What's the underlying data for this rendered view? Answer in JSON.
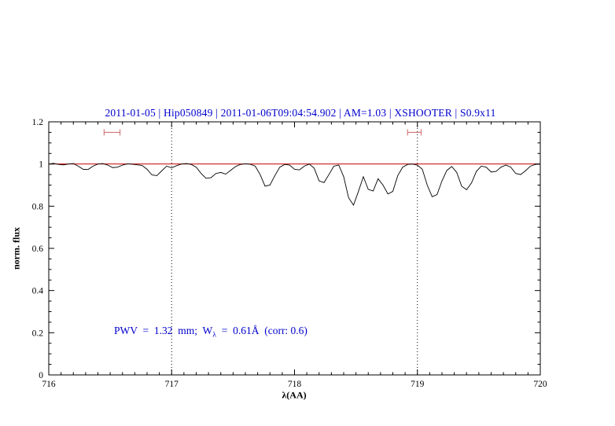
{
  "header": {
    "title": "2011-01-05 | Hip050849 | 2011-01-06T09:04:54.902 | AM=1.03 | XSHOOTER | S0.9x11"
  },
  "annotation": {
    "prefix": "PWV  =  1.32  mm;  W",
    "sub": "λ",
    "suffix": "  =  0.61Å  (corr: 0.6)"
  },
  "colors": {
    "title": "#0000cc",
    "annotation": "#0000cc",
    "continuum": "#cc0000",
    "marker": "#cc6666",
    "spectrum": "#000000",
    "frame": "#000000",
    "vline": "#000000"
  },
  "chart_data": {
    "type": "line",
    "title": "2011-01-05 | Hip050849 | 2011-01-06T09:04:54.902 | AM=1.03 | XSHOOTER | S0.9x11",
    "xlabel": "λ(AA)",
    "ylabel": "norm. flux",
    "xlim": [
      716,
      720
    ],
    "ylim": [
      0,
      1.2
    ],
    "x_ticks": [
      716,
      717,
      718,
      719,
      720
    ],
    "x_tick_labels": [
      "716",
      "717",
      "718",
      "719",
      "720"
    ],
    "y_ticks": [
      0,
      0.2,
      0.4,
      0.6,
      0.8,
      1,
      1.2
    ],
    "y_tick_labels": [
      "0",
      "0.2",
      "0.4",
      "0.6",
      "0.8",
      "1",
      "1.2"
    ],
    "x_minor_step": 0.1,
    "y_minor_step": 0.05,
    "grid": false,
    "legend": false,
    "dotted_vlines": [
      717,
      719
    ],
    "continuum_line_y": 1.0,
    "range_markers": [
      {
        "x1": 716.45,
        "x2": 716.58,
        "y": 1.15
      },
      {
        "x1": 718.92,
        "x2": 719.03,
        "y": 1.15
      }
    ],
    "series": [
      {
        "name": "spectrum",
        "x": [
          716.0,
          716.04,
          716.08,
          716.12,
          716.16,
          716.2,
          716.24,
          716.28,
          716.32,
          716.36,
          716.4,
          716.44,
          716.48,
          716.52,
          716.56,
          716.6,
          716.64,
          716.68,
          716.72,
          716.76,
          716.8,
          716.84,
          716.88,
          716.92,
          716.96,
          717.0,
          717.04,
          717.08,
          717.12,
          717.16,
          717.2,
          717.24,
          717.28,
          717.32,
          717.36,
          717.4,
          717.44,
          717.48,
          717.52,
          717.56,
          717.6,
          717.64,
          717.68,
          717.72,
          717.76,
          717.8,
          717.84,
          717.88,
          717.92,
          717.96,
          718.0,
          718.04,
          718.08,
          718.12,
          718.16,
          718.2,
          718.24,
          718.28,
          718.32,
          718.36,
          718.4,
          718.44,
          718.48,
          718.52,
          718.56,
          718.6,
          718.64,
          718.68,
          718.72,
          718.76,
          718.8,
          718.84,
          718.88,
          718.92,
          718.96,
          719.0,
          719.04,
          719.08,
          719.12,
          719.16,
          719.2,
          719.24,
          719.28,
          719.32,
          719.36,
          719.4,
          719.44,
          719.48,
          719.52,
          719.56,
          719.6,
          719.64,
          719.68,
          719.72,
          719.76,
          719.8,
          719.84,
          719.88,
          719.92,
          719.96,
          720.0
        ],
        "y": [
          1.0,
          1.003,
          0.998,
          0.996,
          1.0,
          1.002,
          0.99,
          0.975,
          0.974,
          0.99,
          1.0,
          1.002,
          0.995,
          0.983,
          0.985,
          0.995,
          1.001,
          0.999,
          0.996,
          0.993,
          0.975,
          0.948,
          0.945,
          0.968,
          0.99,
          0.982,
          0.992,
          1.0,
          1.002,
          0.998,
          0.985,
          0.955,
          0.932,
          0.935,
          0.955,
          0.96,
          0.952,
          0.97,
          0.988,
          0.998,
          1.001,
          0.999,
          0.99,
          0.95,
          0.895,
          0.9,
          0.945,
          0.985,
          0.998,
          0.995,
          0.975,
          0.972,
          0.99,
          1.0,
          0.98,
          0.92,
          0.912,
          0.95,
          0.99,
          0.995,
          0.94,
          0.84,
          0.805,
          0.87,
          0.94,
          0.88,
          0.872,
          0.93,
          0.9,
          0.858,
          0.87,
          0.945,
          0.985,
          0.998,
          1.0,
          0.995,
          0.975,
          0.9,
          0.845,
          0.855,
          0.92,
          0.97,
          0.988,
          0.96,
          0.895,
          0.878,
          0.91,
          0.965,
          0.99,
          0.985,
          0.962,
          0.965,
          0.985,
          0.995,
          0.985,
          0.955,
          0.95,
          0.968,
          0.99,
          0.998,
          1.0
        ]
      }
    ]
  }
}
